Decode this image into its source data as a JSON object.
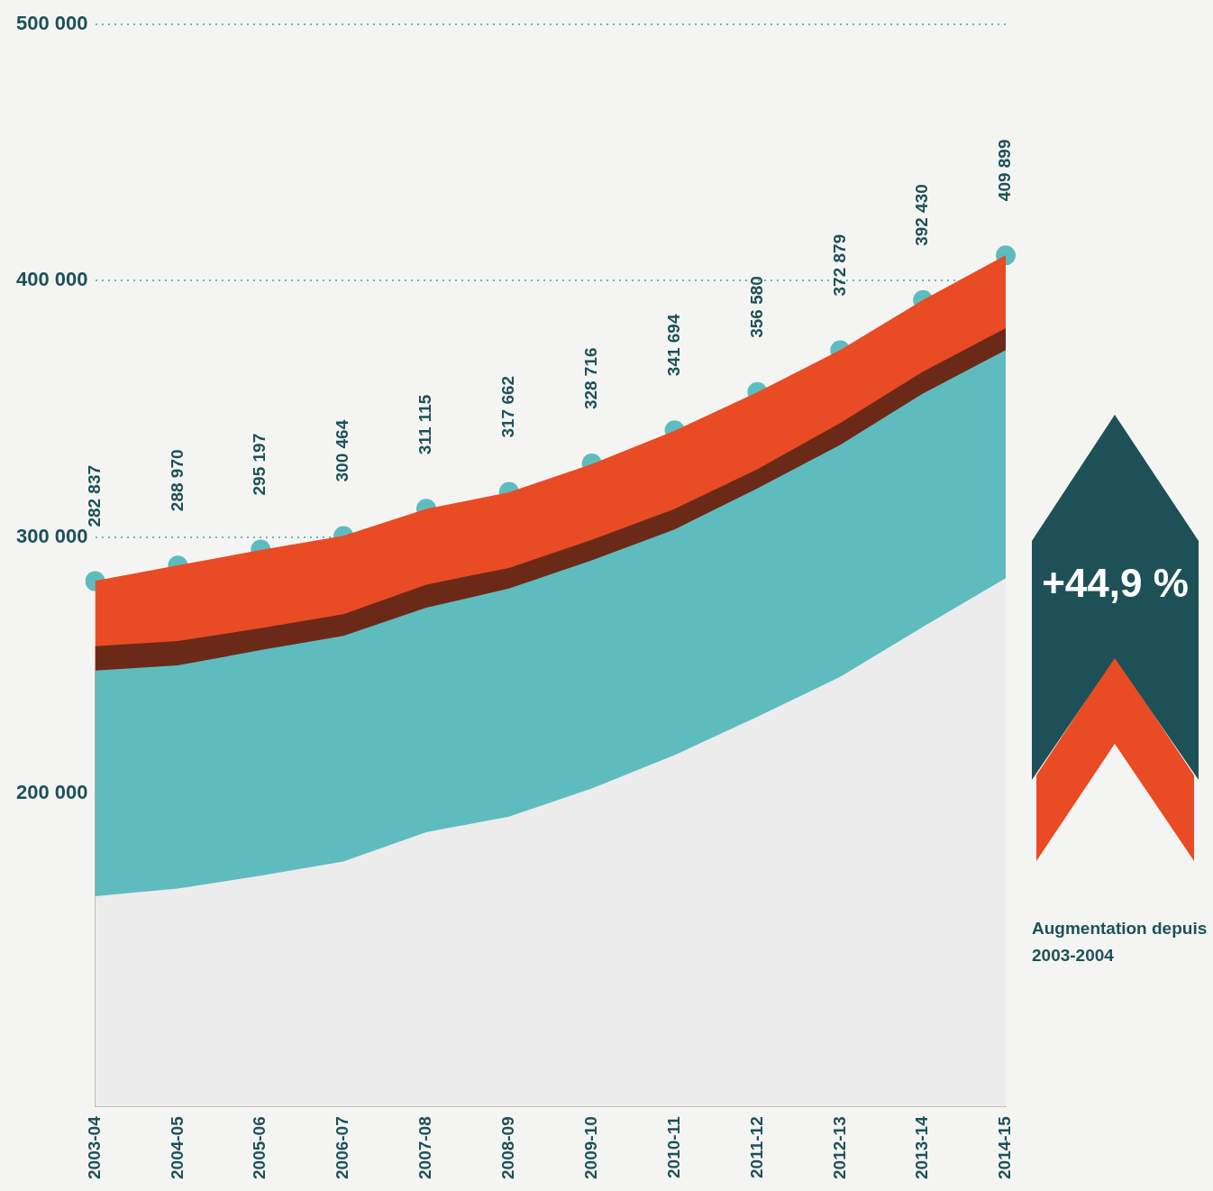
{
  "chart_data": {
    "type": "area",
    "categories": [
      "2003-04",
      "2004-05",
      "2005-06",
      "2006-07",
      "2007-08",
      "2008-09",
      "2009-10",
      "2010-11",
      "2011-12",
      "2012-13",
      "2013-14",
      "2014-15"
    ],
    "series": [
      {
        "type": "scatter",
        "color": "#5ebcbf",
        "marker": "circle",
        "values": [
          282837,
          288970,
          295197,
          300464,
          311115,
          317662,
          328716,
          341694,
          356580,
          372879,
          392430,
          409899
        ],
        "value_labels": [
          "282 837",
          "288 970",
          "295 197",
          "300 464",
          "311 115",
          "317 662",
          "328 716",
          "341 694",
          "356 580",
          "372 879",
          "392 430",
          "409 899"
        ]
      },
      {
        "color": "#e94b25",
        "values": [
          283000,
          289000,
          295000,
          300500,
          311000,
          317500,
          328500,
          341500,
          356500,
          373000,
          392500,
          410000
        ]
      },
      {
        "color": "#6b2a17",
        "values": [
          257500,
          259500,
          264500,
          270000,
          281500,
          288000,
          299000,
          311000,
          326500,
          344500,
          364500,
          381500
        ]
      },
      {
        "color": "#5ebcbf",
        "values": [
          248000,
          250000,
          256000,
          261500,
          272500,
          280000,
          291000,
          303000,
          319000,
          336000,
          356000,
          373000
        ]
      },
      {
        "color": "#ececec",
        "values": [
          160000,
          163000,
          168000,
          173500,
          185000,
          191000,
          202000,
          215000,
          230000,
          245500,
          265000,
          284000
        ]
      }
    ],
    "ylim": [
      78000,
      502000
    ],
    "yticks": [
      {
        "value": 200000,
        "label": "200 000"
      },
      {
        "value": 300000,
        "label": "300 000"
      },
      {
        "value": 400000,
        "label": "400 000"
      },
      {
        "value": 500000,
        "label": "500 000"
      }
    ],
    "grid": "y",
    "legend": false,
    "annotations": [
      "+44,9 %",
      "Augmentation depuis 2003-2004"
    ]
  }
}
